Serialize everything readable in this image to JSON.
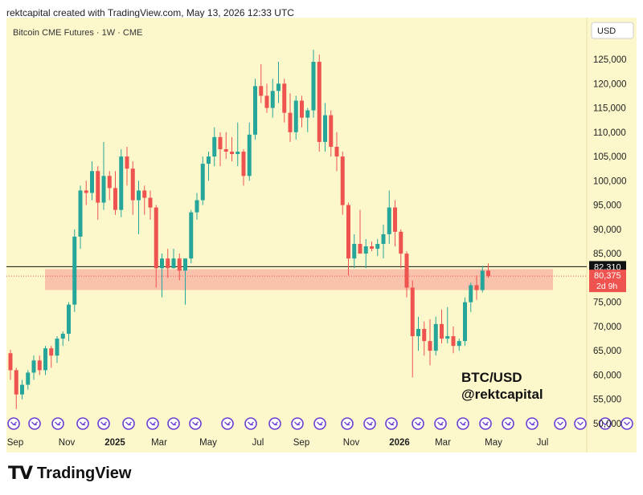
{
  "header": {
    "text": "rektcapital created with TradingView.com, May 13, 2026 12:33 UTC"
  },
  "footer": {
    "brand": "TradingView",
    "logo_glyph": "TV"
  },
  "chart_data": {
    "type": "candlestick",
    "title": "Bitcoin CME Futures · 1W · CME",
    "currency": "USD",
    "watermark": [
      "BTC/USD",
      "@rektcapital"
    ],
    "y_ticks": [
      50000,
      55000,
      60000,
      65000,
      70000,
      75000,
      80000,
      85000,
      90000,
      95000,
      100000,
      105000,
      110000,
      115000,
      120000,
      125000
    ],
    "y_tick_labels": [
      "50,000",
      "55,000",
      "60,000",
      "65,000",
      "70,000",
      "75,000",
      "80,000",
      "85,000",
      "90,000",
      "95,000",
      "100,000",
      "105,000",
      "110,000",
      "115,000",
      "120,000",
      "125,000"
    ],
    "x_labels": [
      {
        "label": "Sep",
        "bold": false
      },
      {
        "label": "Nov",
        "bold": false
      },
      {
        "label": "2025",
        "bold": true
      },
      {
        "label": "Mar",
        "bold": false
      },
      {
        "label": "May",
        "bold": false
      },
      {
        "label": "Jul",
        "bold": false
      },
      {
        "label": "Sep",
        "bold": false
      },
      {
        "label": "Nov",
        "bold": false
      },
      {
        "label": "2026",
        "bold": true
      },
      {
        "label": "Mar",
        "bold": false
      },
      {
        "label": "May",
        "bold": false
      },
      {
        "label": "Jul",
        "bold": false
      }
    ],
    "price_lines": {
      "horizontal_level": "82,310",
      "last_price": "80,375",
      "countdown": "2d 9h"
    },
    "support_zone": {
      "low": 77500,
      "high": 81800,
      "color": "#f8b9a6"
    },
    "colors": {
      "up": "#26a69a",
      "down": "#ef5350",
      "background": "#fcf8cc",
      "event_icon": "#6a3fd0"
    },
    "candles": [
      [
        64500,
        65200,
        59000,
        61000
      ],
      [
        61000,
        61500,
        53000,
        56000
      ],
      [
        56000,
        59000,
        55000,
        58000
      ],
      [
        58000,
        61000,
        57000,
        60500
      ],
      [
        60500,
        64000,
        59000,
        63000
      ],
      [
        63000,
        64000,
        60000,
        61000
      ],
      [
        61000,
        66000,
        60000,
        65500
      ],
      [
        65500,
        66000,
        61500,
        64000
      ],
      [
        64000,
        68000,
        62500,
        67500
      ],
      [
        67500,
        69000,
        66000,
        68500
      ],
      [
        68500,
        75000,
        67000,
        74500
      ],
      [
        74500,
        90000,
        73000,
        88500
      ],
      [
        88500,
        99000,
        86000,
        98000
      ],
      [
        98000,
        100000,
        95000,
        97500
      ],
      [
        97500,
        104000,
        96000,
        102000
      ],
      [
        102000,
        103000,
        92000,
        95500
      ],
      [
        95500,
        108000,
        94000,
        101000
      ],
      [
        101000,
        102000,
        96000,
        98500
      ],
      [
        98500,
        102000,
        93000,
        94000
      ],
      [
        94000,
        106500,
        92500,
        105000
      ],
      [
        105000,
        107000,
        99000,
        102500
      ],
      [
        102500,
        104000,
        93000,
        96000
      ],
      [
        96000,
        100000,
        89000,
        98000
      ],
      [
        98000,
        99000,
        93000,
        96500
      ],
      [
        96500,
        98000,
        92000,
        94500
      ],
      [
        94500,
        95000,
        78000,
        82000
      ],
      [
        82000,
        85000,
        76000,
        84000
      ],
      [
        84000,
        86000,
        80000,
        82000
      ],
      [
        82000,
        86000,
        82000,
        84000
      ],
      [
        84000,
        85000,
        79500,
        81500
      ],
      [
        81500,
        84000,
        74500,
        84000
      ],
      [
        84000,
        94000,
        83000,
        93500
      ],
      [
        93500,
        97500,
        92000,
        96000
      ],
      [
        96000,
        105000,
        95000,
        103500
      ],
      [
        103500,
        106000,
        100000,
        105000
      ],
      [
        105000,
        111000,
        103000,
        109000
      ],
      [
        109000,
        110000,
        103000,
        106500
      ],
      [
        106500,
        110000,
        104500,
        106000
      ],
      [
        106000,
        109000,
        104000,
        105500
      ],
      [
        105500,
        112000,
        103000,
        106000
      ],
      [
        106000,
        106500,
        99000,
        101000
      ],
      [
        101000,
        112000,
        100000,
        109500
      ],
      [
        109500,
        121000,
        108500,
        119500
      ],
      [
        119500,
        124000,
        116000,
        117500
      ],
      [
        117500,
        120000,
        114000,
        115000
      ],
      [
        115000,
        121000,
        113000,
        118500
      ],
      [
        118500,
        124500,
        116000,
        120000
      ],
      [
        120000,
        121000,
        112000,
        114000
      ],
      [
        114000,
        118000,
        108000,
        110000
      ],
      [
        110000,
        117500,
        108500,
        116500
      ],
      [
        116500,
        117500,
        111000,
        113000
      ],
      [
        113000,
        115000,
        110000,
        114500
      ],
      [
        114500,
        127000,
        113000,
        124500
      ],
      [
        124500,
        126000,
        106000,
        108000
      ],
      [
        108000,
        116000,
        106000,
        113500
      ],
      [
        113500,
        114500,
        105000,
        107000
      ],
      [
        107000,
        110000,
        102000,
        105000
      ],
      [
        105000,
        106000,
        93000,
        95000
      ],
      [
        95000,
        95500,
        80500,
        84000
      ],
      [
        84000,
        89000,
        82000,
        87000
      ],
      [
        87000,
        94000,
        85000,
        85000
      ],
      [
        85000,
        88000,
        82000,
        86500
      ],
      [
        86500,
        87500,
        85500,
        86000
      ],
      [
        86000,
        88000,
        84500,
        87000
      ],
      [
        87000,
        91000,
        84000,
        89000
      ],
      [
        89000,
        98000,
        87000,
        94500
      ],
      [
        94500,
        96000,
        86500,
        89500
      ],
      [
        89500,
        90000,
        82000,
        85000
      ],
      [
        85000,
        85500,
        76000,
        78000
      ],
      [
        78000,
        79500,
        59500,
        68000
      ],
      [
        68000,
        72000,
        65000,
        69500
      ],
      [
        69500,
        71000,
        64000,
        67000
      ],
      [
        67000,
        71500,
        62000,
        65000
      ],
      [
        65000,
        72000,
        64000,
        70500
      ],
      [
        70500,
        73500,
        66500,
        67500
      ],
      [
        67500,
        74000,
        66500,
        68000
      ],
      [
        68000,
        70000,
        64500,
        66000
      ],
      [
        66000,
        67500,
        65000,
        67000
      ],
      [
        67000,
        76000,
        66000,
        75000
      ],
      [
        75000,
        79000,
        73000,
        78500
      ],
      [
        78500,
        80500,
        75500,
        77500
      ],
      [
        77500,
        82500,
        77000,
        81500
      ],
      [
        81500,
        83000,
        80000,
        80375
      ]
    ],
    "event_icon_count": 23
  }
}
